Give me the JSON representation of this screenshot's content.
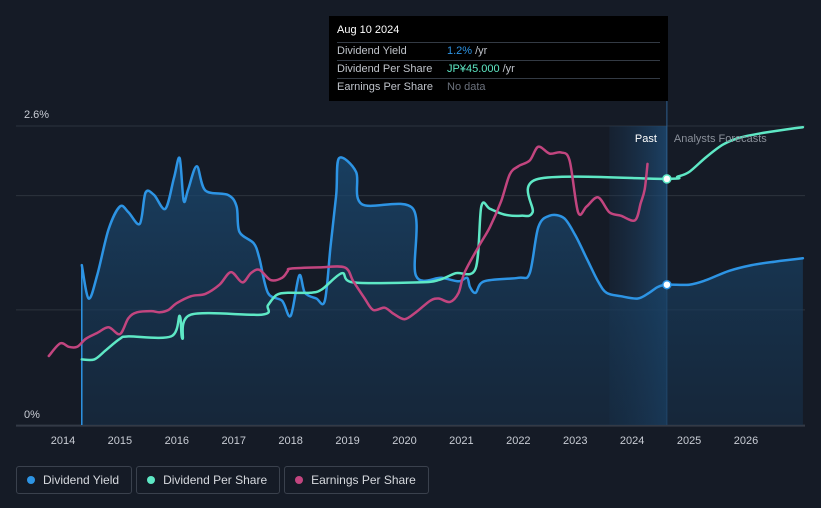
{
  "chart_data": {
    "type": "line",
    "x_start": 2013.75,
    "x_end": 2027.0,
    "y_unit_note": "yield in %, DPS and EPS shown on independent scales",
    "y_ticks": [
      {
        "value": 2.6,
        "label": "2.6%"
      },
      {
        "value": 0,
        "label": "0%"
      }
    ],
    "x_ticks": [
      {
        "value": 2014,
        "label": "2014"
      },
      {
        "value": 2015,
        "label": "2015"
      },
      {
        "value": 2016,
        "label": "2016"
      },
      {
        "value": 2017,
        "label": "2017"
      },
      {
        "value": 2018,
        "label": "2018"
      },
      {
        "value": 2019,
        "label": "2019"
      },
      {
        "value": 2020,
        "label": "2020"
      },
      {
        "value": 2021,
        "label": "2021"
      },
      {
        "value": 2022,
        "label": "2022"
      },
      {
        "value": 2023,
        "label": "2023"
      },
      {
        "value": 2024,
        "label": "2024"
      },
      {
        "value": 2025,
        "label": "2025"
      },
      {
        "value": 2026,
        "label": "2026"
      }
    ],
    "past_region": {
      "start": 2023.6,
      "end": 2024.61,
      "label": "Past"
    },
    "forecast_label": "Analysts Forecasts",
    "series": [
      {
        "name": "Dividend Yield",
        "unit": "%",
        "color": "#2d94e4",
        "fill": true,
        "forecast_from": 2024.61,
        "marker_at": 2024.61,
        "points": [
          [
            2014.33,
            1.39
          ],
          [
            2014.45,
            1.1
          ],
          [
            2014.6,
            1.3
          ],
          [
            2014.8,
            1.7
          ],
          [
            2015.0,
            1.9
          ],
          [
            2015.15,
            1.85
          ],
          [
            2015.35,
            1.75
          ],
          [
            2015.45,
            2.02
          ],
          [
            2015.6,
            2.0
          ],
          [
            2015.8,
            1.88
          ],
          [
            2015.95,
            2.15
          ],
          [
            2016.05,
            2.32
          ],
          [
            2016.12,
            1.95
          ],
          [
            2016.2,
            2.05
          ],
          [
            2016.35,
            2.25
          ],
          [
            2016.5,
            2.04
          ],
          [
            2016.9,
            2.0
          ],
          [
            2017.05,
            1.9
          ],
          [
            2017.1,
            1.68
          ],
          [
            2017.35,
            1.58
          ],
          [
            2017.45,
            1.45
          ],
          [
            2017.6,
            1.15
          ],
          [
            2017.85,
            1.08
          ],
          [
            2018.0,
            0.95
          ],
          [
            2018.15,
            1.3
          ],
          [
            2018.25,
            1.15
          ],
          [
            2018.45,
            1.1
          ],
          [
            2018.6,
            1.08
          ],
          [
            2018.7,
            1.55
          ],
          [
            2018.8,
            2.0
          ],
          [
            2018.85,
            2.32
          ],
          [
            2019.15,
            2.2
          ],
          [
            2019.25,
            1.92
          ],
          [
            2020.15,
            1.88
          ],
          [
            2020.2,
            1.3
          ],
          [
            2020.65,
            1.28
          ],
          [
            2020.95,
            1.25
          ],
          [
            2021.1,
            1.28
          ],
          [
            2021.15,
            1.2
          ],
          [
            2021.25,
            1.15
          ],
          [
            2021.4,
            1.25
          ],
          [
            2022.0,
            1.28
          ],
          [
            2022.2,
            1.32
          ],
          [
            2022.35,
            1.72
          ],
          [
            2022.55,
            1.82
          ],
          [
            2022.8,
            1.8
          ],
          [
            2023.0,
            1.65
          ],
          [
            2023.2,
            1.45
          ],
          [
            2023.4,
            1.25
          ],
          [
            2023.55,
            1.15
          ],
          [
            2023.8,
            1.12
          ],
          [
            2024.1,
            1.1
          ],
          [
            2024.3,
            1.15
          ],
          [
            2024.45,
            1.2
          ],
          [
            2024.61,
            1.22
          ],
          [
            2025.0,
            1.22
          ],
          [
            2025.3,
            1.26
          ],
          [
            2025.7,
            1.34
          ],
          [
            2026.1,
            1.39
          ],
          [
            2026.5,
            1.42
          ],
          [
            2027.0,
            1.45
          ]
        ]
      },
      {
        "name": "Dividend Per Share",
        "unit": "JP¥",
        "color": "#5ee8c5",
        "fill": false,
        "forecast_from": 2024.61,
        "marker_at": 2024.61,
        "points": [
          [
            2014.33,
            0.57
          ],
          [
            2014.55,
            0.57
          ],
          [
            2014.75,
            0.65
          ],
          [
            2015.0,
            0.75
          ],
          [
            2015.15,
            0.77
          ],
          [
            2015.9,
            0.77
          ],
          [
            2016.05,
            0.95
          ],
          [
            2016.1,
            0.75
          ],
          [
            2016.25,
            0.96
          ],
          [
            2017.5,
            0.96
          ],
          [
            2017.6,
            1.04
          ],
          [
            2017.75,
            1.13
          ],
          [
            2017.95,
            1.15
          ],
          [
            2018.35,
            1.15
          ],
          [
            2018.55,
            1.18
          ],
          [
            2018.9,
            1.32
          ],
          [
            2019.1,
            1.24
          ],
          [
            2020.25,
            1.24
          ],
          [
            2020.6,
            1.26
          ],
          [
            2020.9,
            1.32
          ],
          [
            2021.25,
            1.36
          ],
          [
            2021.35,
            1.9
          ],
          [
            2021.5,
            1.88
          ],
          [
            2021.75,
            1.83
          ],
          [
            2022.05,
            1.82
          ],
          [
            2022.25,
            1.85
          ],
          [
            2022.35,
            2.14
          ],
          [
            2024.61,
            2.14
          ],
          [
            2024.8,
            2.16
          ],
          [
            2025.0,
            2.2
          ],
          [
            2025.3,
            2.33
          ],
          [
            2025.6,
            2.44
          ],
          [
            2025.9,
            2.5
          ],
          [
            2026.3,
            2.54
          ],
          [
            2026.7,
            2.57
          ],
          [
            2027.0,
            2.59
          ]
        ]
      },
      {
        "name": "Earnings Per Share",
        "unit": "JP¥",
        "color": "#c2457f",
        "fill": false,
        "forecast_from": null,
        "marker_at": null,
        "points": [
          [
            2013.75,
            0.6
          ],
          [
            2013.95,
            0.71
          ],
          [
            2014.1,
            0.68
          ],
          [
            2014.25,
            0.68
          ],
          [
            2014.4,
            0.75
          ],
          [
            2014.6,
            0.8
          ],
          [
            2014.8,
            0.85
          ],
          [
            2015.0,
            0.79
          ],
          [
            2015.15,
            0.93
          ],
          [
            2015.3,
            0.98
          ],
          [
            2015.55,
            0.99
          ],
          [
            2015.7,
            0.98
          ],
          [
            2015.85,
            1.0
          ],
          [
            2016.0,
            1.06
          ],
          [
            2016.25,
            1.12
          ],
          [
            2016.5,
            1.14
          ],
          [
            2016.75,
            1.22
          ],
          [
            2016.95,
            1.33
          ],
          [
            2017.15,
            1.24
          ],
          [
            2017.3,
            1.32
          ],
          [
            2017.45,
            1.35
          ],
          [
            2017.65,
            1.26
          ],
          [
            2017.85,
            1.28
          ],
          [
            2017.95,
            1.34
          ],
          [
            2018.0,
            1.36
          ],
          [
            2018.5,
            1.37
          ],
          [
            2018.95,
            1.37
          ],
          [
            2019.1,
            1.25
          ],
          [
            2019.3,
            1.1
          ],
          [
            2019.45,
            1.0
          ],
          [
            2019.65,
            1.02
          ],
          [
            2019.8,
            0.97
          ],
          [
            2020.0,
            0.92
          ],
          [
            2020.2,
            0.98
          ],
          [
            2020.45,
            1.08
          ],
          [
            2020.6,
            1.1
          ],
          [
            2020.8,
            1.07
          ],
          [
            2020.95,
            1.15
          ],
          [
            2021.05,
            1.32
          ],
          [
            2021.3,
            1.55
          ],
          [
            2021.5,
            1.72
          ],
          [
            2021.7,
            1.95
          ],
          [
            2021.85,
            2.18
          ],
          [
            2022.0,
            2.25
          ],
          [
            2022.2,
            2.3
          ],
          [
            2022.35,
            2.42
          ],
          [
            2022.55,
            2.36
          ],
          [
            2022.75,
            2.37
          ],
          [
            2022.9,
            2.3
          ],
          [
            2023.05,
            1.85
          ],
          [
            2023.2,
            1.9
          ],
          [
            2023.4,
            1.98
          ],
          [
            2023.6,
            1.85
          ],
          [
            2023.8,
            1.82
          ],
          [
            2024.05,
            1.78
          ],
          [
            2024.15,
            1.93
          ],
          [
            2024.22,
            2.05
          ],
          [
            2024.27,
            2.27
          ]
        ]
      }
    ]
  },
  "tooltip": {
    "date": "Aug 10 2024",
    "rows": [
      {
        "name": "Dividend Yield",
        "value": "1.2%",
        "unit": "/yr",
        "color": "#2d94e4"
      },
      {
        "name": "Dividend Per Share",
        "value": "JP¥45.000",
        "unit": "/yr",
        "color": "#5ee8c5"
      },
      {
        "name": "Earnings Per Share",
        "value": "No data",
        "unit": "",
        "color": "#6b717c"
      }
    ]
  },
  "legend": [
    {
      "label": "Dividend Yield",
      "color": "#2d94e4"
    },
    {
      "label": "Dividend Per Share",
      "color": "#5ee8c5"
    },
    {
      "label": "Earnings Per Share",
      "color": "#c2457f"
    }
  ]
}
